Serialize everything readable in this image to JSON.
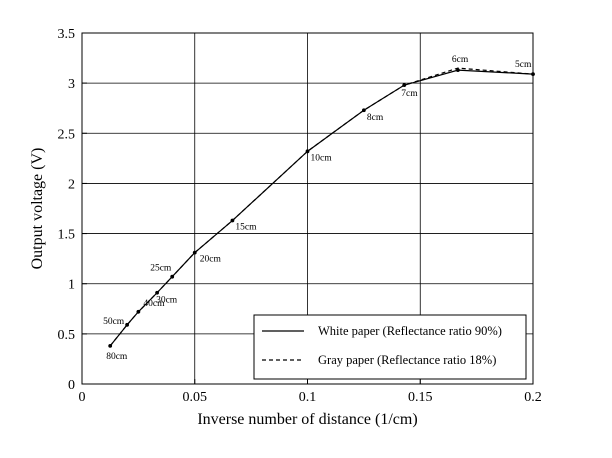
{
  "chart_data": {
    "type": "line",
    "title": "",
    "xlabel": "Inverse number of distance (1/cm)",
    "ylabel": "Output voltage (V)",
    "xlim": [
      0,
      0.2
    ],
    "ylim": [
      0,
      3.5
    ],
    "x_ticks": [
      "0",
      "0.05",
      "0.1",
      "0.15",
      "0.2"
    ],
    "y_ticks": [
      "0",
      "0.5",
      "1",
      "1.5",
      "2",
      "2.5",
      "3",
      "3.5"
    ],
    "grid": true,
    "legend_position": "bottom-right",
    "series": [
      {
        "name": "White paper (Reflectance ratio 90%)",
        "line_style": "solid",
        "x": [
          0.0125,
          0.02,
          0.025,
          0.0333,
          0.04,
          0.05,
          0.0667,
          0.1,
          0.125,
          0.1429,
          0.1667,
          0.2
        ],
        "y": [
          0.38,
          0.59,
          0.72,
          0.91,
          1.07,
          1.31,
          1.63,
          2.32,
          2.73,
          2.98,
          3.13,
          3.09
        ]
      },
      {
        "name": "Gray paper (Reflectance ratio 18%)",
        "line_style": "dashed",
        "x": [
          0.0125,
          0.02,
          0.025,
          0.0333,
          0.04,
          0.05,
          0.0667,
          0.1,
          0.125,
          0.1429,
          0.1667,
          0.2
        ],
        "y": [
          0.38,
          0.59,
          0.72,
          0.91,
          1.07,
          1.31,
          1.63,
          2.32,
          2.73,
          2.98,
          3.15,
          3.09
        ]
      }
    ],
    "point_labels": [
      {
        "text": "80cm",
        "x": 0.0125,
        "y": 0.38
      },
      {
        "text": "50cm",
        "x": 0.02,
        "y": 0.59
      },
      {
        "text": "40cm",
        "x": 0.025,
        "y": 0.72
      },
      {
        "text": "30cm",
        "x": 0.0333,
        "y": 0.91
      },
      {
        "text": "25cm",
        "x": 0.04,
        "y": 1.07
      },
      {
        "text": "20cm",
        "x": 0.05,
        "y": 1.31
      },
      {
        "text": "15cm",
        "x": 0.0667,
        "y": 1.63
      },
      {
        "text": "10cm",
        "x": 0.1,
        "y": 2.32
      },
      {
        "text": "8cm",
        "x": 0.125,
        "y": 2.73
      },
      {
        "text": "7cm",
        "x": 0.1429,
        "y": 2.98
      },
      {
        "text": "6cm",
        "x": 0.1667,
        "y": 3.14
      },
      {
        "text": "5cm",
        "x": 0.2,
        "y": 3.09
      }
    ]
  }
}
